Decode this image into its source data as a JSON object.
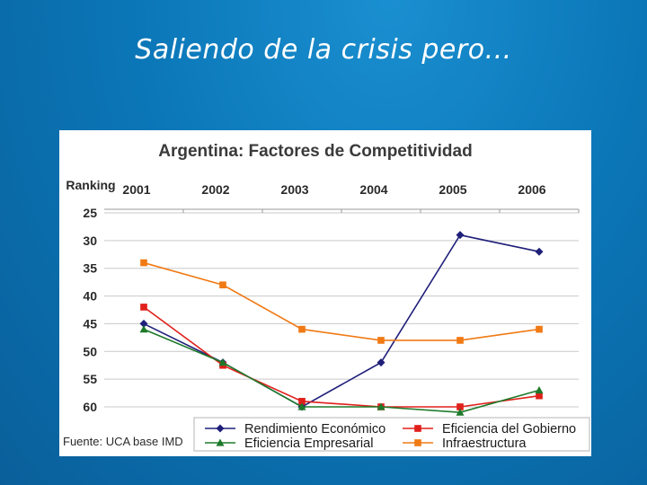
{
  "slide": {
    "title": "Saliendo de la crisis pero..."
  },
  "chart_data": {
    "type": "line",
    "title": "Argentina: Factores de Competitividad",
    "ylabel": "Ranking",
    "xlabel": "",
    "categories": [
      "2001",
      "2002",
      "2003",
      "2004",
      "2005",
      "2006"
    ],
    "yticks": [
      "25",
      "30",
      "35",
      "40",
      "45",
      "50",
      "55",
      "60"
    ],
    "ylim": [
      25,
      60
    ],
    "y_inverted": true,
    "grid": true,
    "series": [
      {
        "name": "Rendimiento Económico",
        "color": "#1f1f7a",
        "marker": "diamond",
        "values": [
          45,
          52,
          60,
          52,
          29,
          32
        ]
      },
      {
        "name": "Eficiencia del Gobierno",
        "color": "#e0201b",
        "marker": "square",
        "values": [
          42,
          52.5,
          59,
          60,
          60,
          58
        ]
      },
      {
        "name": "Eficiencia Empresarial",
        "color": "#1e7a2a",
        "marker": "triangle",
        "values": [
          46,
          52,
          60,
          60,
          61,
          57
        ]
      },
      {
        "name": "Infraestructura",
        "color": "#f07a14",
        "marker": "square",
        "values": [
          34,
          38,
          46,
          48,
          48,
          46
        ]
      }
    ],
    "legend_position": "bottom-right",
    "source": "Fuente: UCA base IMD"
  }
}
